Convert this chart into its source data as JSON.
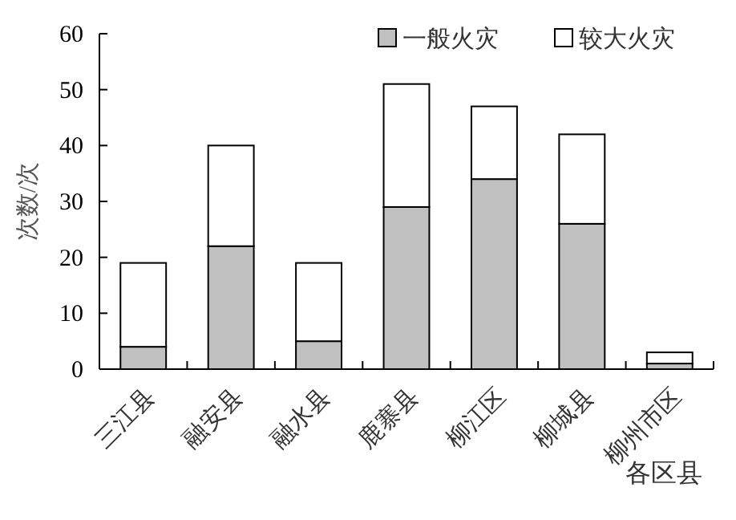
{
  "chart_data": {
    "type": "bar",
    "stacked": true,
    "xlabel": "各区县",
    "ylabel": "次数/次",
    "categories": [
      "三江县",
      "融安县",
      "融水县",
      "鹿寨县",
      "柳江区",
      "柳城县",
      "柳州市区"
    ],
    "series": [
      {
        "name": "一般火灾",
        "color": "#c0c0c0",
        "values": [
          4,
          22,
          5,
          29,
          34,
          26,
          1
        ]
      },
      {
        "name": "较大火灾",
        "color": "#ffffff",
        "values": [
          15,
          18,
          14,
          22,
          13,
          16,
          2
        ]
      }
    ],
    "ylim": [
      0,
      60
    ],
    "yticks": [
      0,
      10,
      20,
      30,
      40,
      50,
      60
    ],
    "legend": "top right",
    "grid": false
  }
}
